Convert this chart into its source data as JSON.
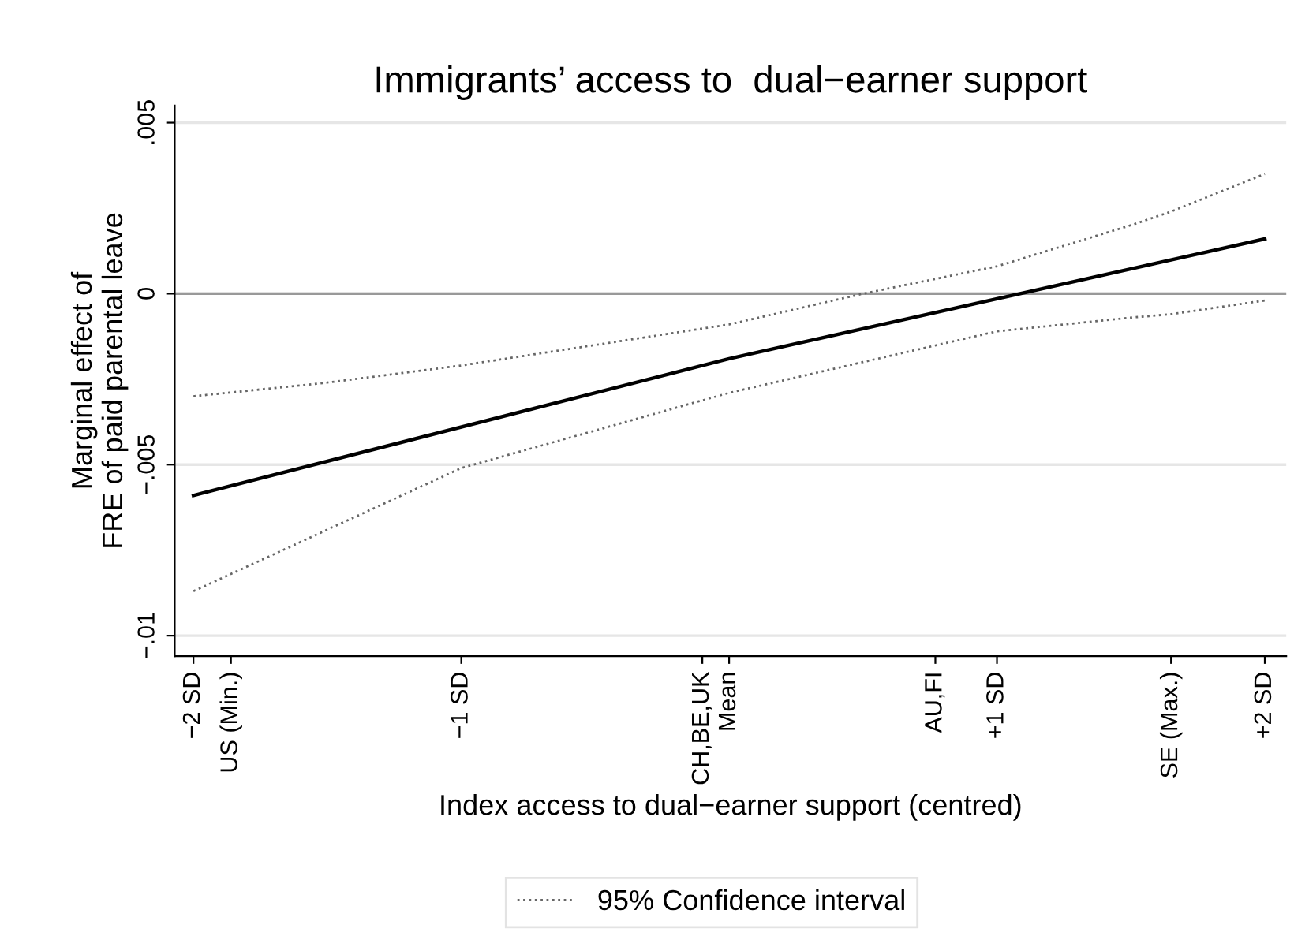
{
  "chart_data": {
    "type": "line",
    "title": "Immigrants’ access to  dual−earner support",
    "xlabel": "Index access to dual−earner support (centred)",
    "ylabel": "Marginal effect of\nFRE of paid parental leave",
    "series": [
      {
        "color": "#000000",
        "line_style": "solid",
        "x": [
          -2,
          0,
          2
        ],
        "values": [
          -0.0059,
          -0.0019,
          0.0016
        ]
      },
      {
        "name": "95% Confidence interval",
        "color": "#666666",
        "line_style": "dotted",
        "x": [
          -2,
          -1.5,
          -1,
          0,
          0.5,
          1,
          1.5,
          1.65,
          2
        ],
        "values": [
          -0.003,
          -0.0026,
          -0.0021,
          -0.0009,
          0.0,
          0.0008,
          0.002,
          0.0024,
          0.0035
        ]
      },
      {
        "color": "#666666",
        "line_style": "dotted",
        "x": [
          -2,
          -1.5,
          -1,
          0,
          0.5,
          1,
          1.5,
          1.65,
          2
        ],
        "values": [
          -0.0087,
          -0.0069,
          -0.0051,
          -0.0029,
          -0.002,
          -0.0011,
          -0.0007,
          -0.0006,
          -0.0002
        ]
      }
    ],
    "xlim": [
      -2.07,
      2.08
    ],
    "ylim": [
      -0.0106,
      0.0055
    ],
    "xticks": [
      {
        "value": -2,
        "label": "−2 SD"
      },
      {
        "value": -1.86,
        "label": "US (Min.)"
      },
      {
        "value": -1,
        "label": "−1 SD"
      },
      {
        "value": -0.1,
        "label": "CH,BE,UK"
      },
      {
        "value": 0,
        "label": "Mean"
      },
      {
        "value": 0.77,
        "label": "AU,FI"
      },
      {
        "value": 1,
        "label": "+1 SD"
      },
      {
        "value": 1.65,
        "label": "SE (Max.)"
      },
      {
        "value": 2,
        "label": "+2 SD"
      }
    ],
    "yticks": [
      {
        "value": -0.01,
        "label": "−.01"
      },
      {
        "value": -0.005,
        "label": "−.005"
      },
      0,
      {
        "value": 0.005,
        "label": ".005"
      }
    ],
    "ref_lines": [
      {
        "axis": "y",
        "value": 0,
        "color": "#999999"
      }
    ],
    "grid": "y",
    "legend": "bottom"
  }
}
